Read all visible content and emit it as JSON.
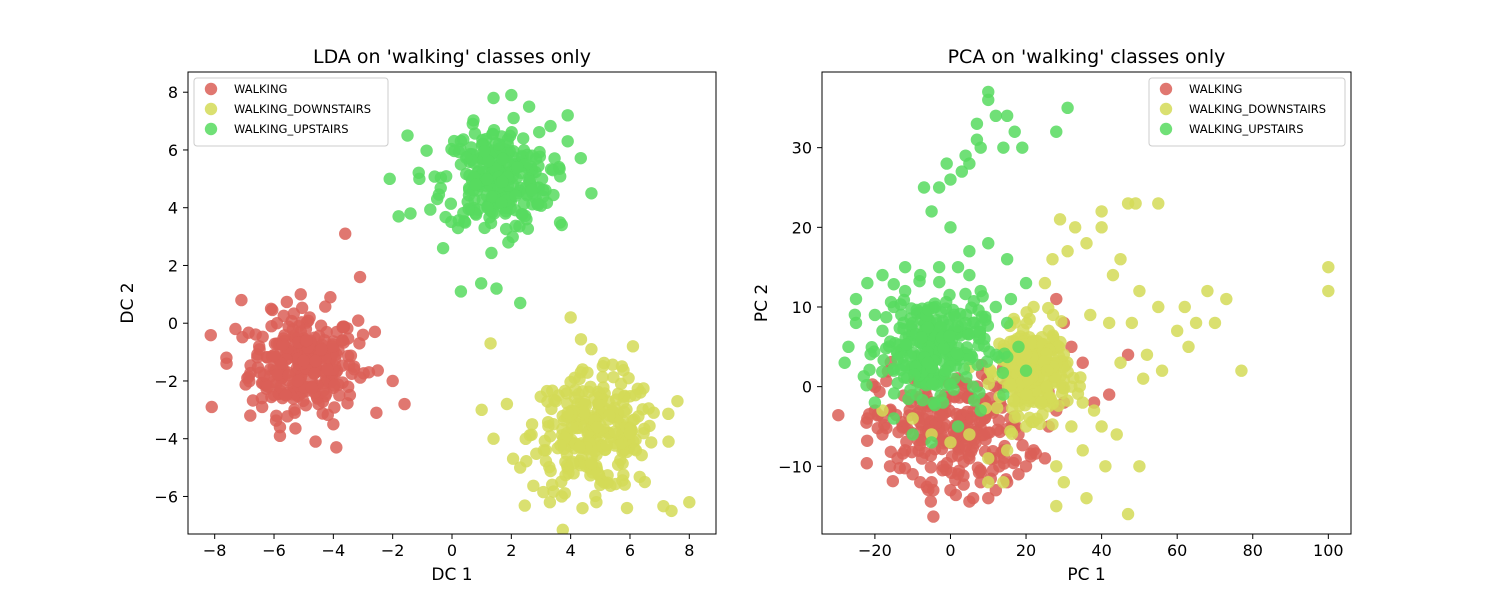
{
  "chart_data": [
    {
      "type": "scatter",
      "title": "LDA on 'walking' classes only",
      "xlabel": "DC 1",
      "ylabel": "DC 2",
      "xlim": [
        -8.9,
        8.9
      ],
      "ylim": [
        -7.3,
        8.7
      ],
      "xticks": [
        -8,
        -6,
        -4,
        -2,
        0,
        2,
        4,
        6,
        8
      ],
      "yticks": [
        -6,
        -4,
        -2,
        0,
        2,
        4,
        6,
        8
      ],
      "xtick_labels": [
        "−8",
        "−6",
        "−4",
        "−2",
        "0",
        "2",
        "4",
        "6",
        "8"
      ],
      "ytick_labels": [
        "−6",
        "−4",
        "−2",
        "0",
        "2",
        "4",
        "6",
        "8"
      ],
      "legend_position": "top-left",
      "series": [
        {
          "name": "WALKING",
          "color": "#db5f57",
          "points": [
            [
              -5,
              -1.3
            ],
            [
              -6.5,
              -0.8
            ],
            [
              -4.2,
              -1.6
            ],
            [
              -5.6,
              -2.5
            ],
            [
              -4.8,
              0.2
            ],
            [
              -6.9,
              -1.9
            ],
            [
              -3.7,
              -0.6
            ],
            [
              -5.3,
              -3.1
            ],
            [
              -4.5,
              -2.8
            ],
            [
              -6.1,
              0.5
            ],
            [
              -3.5,
              -2.2
            ],
            [
              -7.3,
              -0.2
            ],
            [
              -5.8,
              -3.6
            ],
            [
              -4.1,
              0.9
            ],
            [
              -3.3,
              -1.5
            ],
            [
              -6.4,
              -2.9
            ],
            [
              -7.6,
              -1.4
            ],
            [
              -5.1,
              1.0
            ],
            [
              -4.0,
              -3.5
            ],
            [
              -6.8,
              -3.2
            ],
            [
              -3.0,
              -0.4
            ],
            [
              -8.1,
              -2.9
            ],
            [
              -3.6,
              3.1
            ],
            [
              -3.1,
              1.6
            ],
            [
              -2.0,
              -2.0
            ],
            [
              -1.6,
              -2.8
            ],
            [
              -4.6,
              -4.1
            ],
            [
              -5.8,
              -3.9
            ],
            [
              -3.9,
              -4.3
            ],
            [
              -7.1,
              0.8
            ],
            [
              -2.6,
              -0.3
            ],
            [
              -2.8,
              -1.7
            ],
            [
              -4.9,
              -0.6
            ],
            [
              -5.5,
              -1.8
            ],
            [
              -6.0,
              -1.1
            ],
            [
              -4.4,
              -0.9
            ],
            [
              -6.2,
              -2.2
            ],
            [
              -5.2,
              -2.0
            ],
            [
              -3.8,
              -2.5
            ],
            [
              -5.9,
              0.0
            ]
          ],
          "cluster": {
            "cx": -5.0,
            "cy": -1.4,
            "rx": 2.0,
            "ry": 1.9
          }
        },
        {
          "name": "WALKING_DOWNSTAIRS",
          "color": "#d3da57",
          "points": [
            [
              4.9,
              -3.6
            ],
            [
              3.5,
              -2.7
            ],
            [
              6.2,
              -4.4
            ],
            [
              4.1,
              -5.2
            ],
            [
              5.7,
              -2.1
            ],
            [
              3.1,
              -4.4
            ],
            [
              6.8,
              -3.1
            ],
            [
              5.0,
              -5.6
            ],
            [
              2.7,
              -3.5
            ],
            [
              4.4,
              -1.6
            ],
            [
              6.5,
              -5.5
            ],
            [
              3.7,
              -6.0
            ],
            [
              7.3,
              -4.1
            ],
            [
              1.3,
              -0.7
            ],
            [
              4.0,
              0.2
            ],
            [
              7.4,
              -6.5
            ],
            [
              8.0,
              -6.2
            ],
            [
              1.4,
              -4.0
            ],
            [
              1.0,
              -3.0
            ],
            [
              3.3,
              -6.2
            ],
            [
              5.9,
              -6.4
            ],
            [
              2.3,
              -5.0
            ],
            [
              7.6,
              -2.7
            ],
            [
              6.1,
              -0.8
            ],
            [
              4.7,
              -0.9
            ],
            [
              5.3,
              -3.2
            ],
            [
              4.3,
              -4.3
            ],
            [
              5.6,
              -4.9
            ],
            [
              3.9,
              -3.1
            ],
            [
              6.0,
              -3.8
            ]
          ],
          "cluster": {
            "cx": 4.8,
            "cy": -3.8,
            "rx": 2.3,
            "ry": 2.2
          }
        },
        {
          "name": "WALKING_UPSTAIRS",
          "color": "#57db5f",
          "points": [
            [
              1.7,
              4.9
            ],
            [
              0.3,
              5.5
            ],
            [
              2.9,
              4.1
            ],
            [
              1.1,
              3.3
            ],
            [
              2.4,
              6.4
            ],
            [
              -0.5,
              4.3
            ],
            [
              3.4,
              5.3
            ],
            [
              1.9,
              2.8
            ],
            [
              0.7,
              6.9
            ],
            [
              -1.1,
              5.0
            ],
            [
              3.7,
              3.4
            ],
            [
              2.6,
              7.5
            ],
            [
              -0.3,
              2.6
            ],
            [
              1.4,
              7.8
            ],
            [
              3.9,
              6.3
            ],
            [
              -1.4,
              3.8
            ],
            [
              1.5,
              1.2
            ],
            [
              2.3,
              0.7
            ],
            [
              -2.1,
              5.0
            ],
            [
              -1.8,
              3.7
            ],
            [
              0.3,
              1.1
            ],
            [
              4.7,
              4.5
            ],
            [
              3.9,
              7.2
            ],
            [
              -1.5,
              6.5
            ],
            [
              2.0,
              7.9
            ],
            [
              1.2,
              4.0
            ],
            [
              2.2,
              5.4
            ],
            [
              0.8,
              4.8
            ],
            [
              1.8,
              3.8
            ],
            [
              2.7,
              5.8
            ]
          ],
          "cluster": {
            "cx": 1.5,
            "cy": 5.0,
            "rx": 2.0,
            "ry": 2.0
          }
        }
      ]
    },
    {
      "type": "scatter",
      "title": "PCA on 'walking' classes only",
      "xlabel": "PC 1",
      "ylabel": "PC 2",
      "xlim": [
        -34,
        106
      ],
      "ylim": [
        -18.5,
        39.5
      ],
      "xticks": [
        -20,
        0,
        20,
        40,
        60,
        80,
        100
      ],
      "yticks": [
        -10,
        0,
        10,
        20,
        30
      ],
      "xtick_labels": [
        "−20",
        "0",
        "20",
        "40",
        "60",
        "80",
        "100"
      ],
      "ytick_labels": [
        "−10",
        "0",
        "10",
        "20",
        "30"
      ],
      "legend_position": "top-right",
      "series": [
        {
          "name": "WALKING",
          "color": "#db5f57",
          "points": [
            [
              -18,
              -6
            ],
            [
              -14,
              -9
            ],
            [
              -10,
              -11
            ],
            [
              -5,
              -12
            ],
            [
              0,
              -13
            ],
            [
              6,
              -14
            ],
            [
              12,
              -13
            ],
            [
              18,
              -11
            ],
            [
              22,
              -8
            ],
            [
              26,
              -5
            ],
            [
              30,
              -2
            ],
            [
              -20,
              -3
            ],
            [
              -22,
              -4
            ],
            [
              -16,
              -10
            ],
            [
              10,
              -14
            ],
            [
              -8,
              -12
            ],
            [
              2,
              -11
            ],
            [
              15,
              -12
            ],
            [
              20,
              -10
            ],
            [
              28,
              -3
            ],
            [
              35,
              3
            ],
            [
              38,
              -2
            ],
            [
              42,
              -1
            ],
            [
              32,
              5
            ],
            [
              28,
              11
            ],
            [
              47,
              4
            ],
            [
              25,
              -9
            ],
            [
              8,
              -12
            ],
            [
              -12,
              -8
            ],
            [
              -2,
              -10
            ],
            [
              14,
              -8
            ],
            [
              5,
              -9
            ],
            [
              24,
              2
            ],
            [
              30,
              8
            ],
            [
              18,
              -6
            ]
          ],
          "cluster": {
            "cx": 0,
            "cy": -5,
            "rx": 22,
            "ry": 8
          }
        },
        {
          "name": "WALKING_DOWNSTAIRS",
          "color": "#d3da57",
          "points": [
            [
              100,
              15
            ],
            [
              100,
              12
            ],
            [
              77,
              2
            ],
            [
              70,
              8
            ],
            [
              73,
              11
            ],
            [
              68,
              12
            ],
            [
              65,
              8
            ],
            [
              62,
              10
            ],
            [
              63,
              5
            ],
            [
              60,
              7
            ],
            [
              55,
              10
            ],
            [
              56,
              2
            ],
            [
              55,
              23
            ],
            [
              49,
              23
            ],
            [
              47,
              23
            ],
            [
              40,
              22
            ],
            [
              43,
              14
            ],
            [
              45,
              16
            ],
            [
              50,
              12
            ],
            [
              48,
              8
            ],
            [
              52,
              4
            ],
            [
              51,
              1
            ],
            [
              50,
              -10
            ],
            [
              47,
              -16
            ],
            [
              41,
              -10
            ],
            [
              36,
              -14
            ],
            [
              35,
              -8
            ],
            [
              38,
              -3
            ],
            [
              32,
              -5
            ],
            [
              28,
              -15
            ],
            [
              30,
              -12
            ],
            [
              29,
              21
            ],
            [
              33,
              20
            ],
            [
              31,
              17
            ],
            [
              36,
              18
            ],
            [
              40,
              20
            ],
            [
              27,
              16
            ],
            [
              25,
              13
            ],
            [
              22,
              10
            ],
            [
              26,
              7
            ],
            [
              30,
              4
            ],
            [
              32,
              0
            ],
            [
              35,
              -2
            ],
            [
              40,
              -5
            ],
            [
              44,
              -6
            ],
            [
              20,
              -5
            ],
            [
              15,
              -8
            ],
            [
              10,
              -9
            ],
            [
              5,
              -6
            ],
            [
              0,
              -7
            ],
            [
              -5,
              -6
            ],
            [
              -10,
              -4
            ],
            [
              -18,
              -3
            ],
            [
              10,
              -12
            ],
            [
              14,
              -12
            ],
            [
              28,
              -10
            ],
            [
              42,
              8
            ],
            [
              45,
              3
            ],
            [
              37,
              9
            ],
            [
              24,
              -2
            ]
          ],
          "cluster": {
            "cx": 22,
            "cy": 2,
            "rx": 10,
            "ry": 6
          }
        },
        {
          "name": "WALKING_UPSTAIRS",
          "color": "#57db5f",
          "points": [
            [
              -28,
              3
            ],
            [
              -25,
              11
            ],
            [
              -22,
              13
            ],
            [
              -18,
              14
            ],
            [
              -15,
              10
            ],
            [
              -12,
              12
            ],
            [
              -8,
              14
            ],
            [
              -3,
              15
            ],
            [
              2,
              15
            ],
            [
              5,
              14
            ],
            [
              8,
              12
            ],
            [
              12,
              10
            ],
            [
              15,
              8
            ],
            [
              18,
              5
            ],
            [
              20,
              2
            ],
            [
              -25,
              8
            ],
            [
              -27,
              5
            ],
            [
              -20,
              -2
            ],
            [
              -15,
              -4
            ],
            [
              -10,
              -6
            ],
            [
              -5,
              -7
            ],
            [
              2,
              -5
            ],
            [
              8,
              -3
            ],
            [
              14,
              -1
            ],
            [
              10,
              36
            ],
            [
              12,
              34
            ],
            [
              8,
              30
            ],
            [
              5,
              28
            ],
            [
              3,
              27
            ],
            [
              0,
              26
            ],
            [
              -3,
              25
            ],
            [
              -5,
              22
            ],
            [
              0,
              20
            ],
            [
              5,
              17
            ],
            [
              10,
              18
            ],
            [
              15,
              16
            ],
            [
              20,
              13
            ],
            [
              14,
              30
            ],
            [
              17,
              32
            ],
            [
              15,
              34
            ],
            [
              28,
              32
            ],
            [
              31,
              35
            ],
            [
              19,
              30
            ],
            [
              7,
              31
            ],
            [
              -7,
              25
            ],
            [
              -12,
              15
            ],
            [
              -20,
              9
            ],
            [
              -18,
              7
            ],
            [
              -10,
              8
            ],
            [
              -4,
              10
            ],
            [
              4,
              8
            ],
            [
              9,
              6
            ],
            [
              -15,
              2
            ],
            [
              -6,
              3
            ],
            [
              1,
              1
            ],
            [
              6,
              0
            ],
            [
              -2,
              -2
            ],
            [
              -9,
              -1
            ],
            [
              12,
              4
            ],
            [
              16,
              11
            ],
            [
              10,
              37
            ],
            [
              7,
              33
            ],
            [
              4,
              29
            ],
            [
              -1,
              28
            ]
          ],
          "cluster": {
            "cx": -5,
            "cy": 5,
            "rx": 15,
            "ry": 7
          }
        }
      ]
    }
  ]
}
